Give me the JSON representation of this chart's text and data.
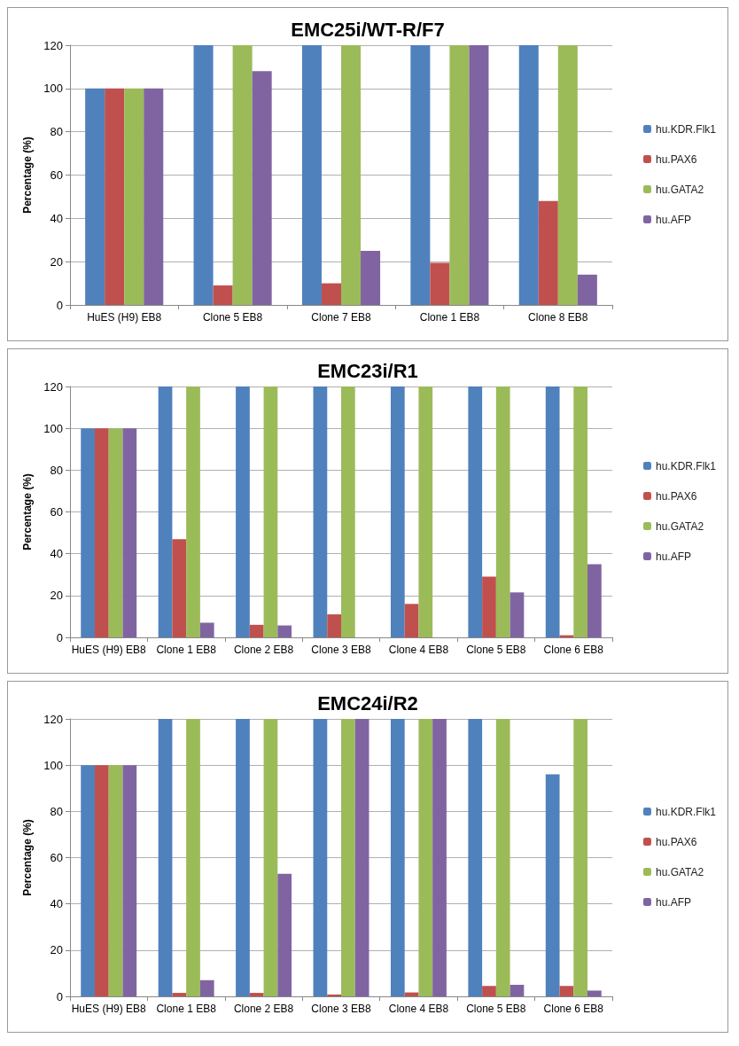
{
  "chart_data": [
    {
      "type": "bar",
      "title": "EMC25i/WT-R/F7",
      "ylabel": "Percentage (%)",
      "categories": [
        "HuES (H9) EB8",
        "Clone 5 EB8",
        "Clone 7 EB8",
        "Clone 1 EB8",
        "Clone 8 EB8"
      ],
      "ylim": [
        0,
        120
      ],
      "yticks": [
        0,
        20,
        40,
        60,
        80,
        100,
        120
      ],
      "grid": "y",
      "legend": "right",
      "series": [
        {
          "name": "hu.KDR.Flk1",
          "color": "#4f81bd",
          "values": [
            100,
            120,
            120,
            120,
            120
          ]
        },
        {
          "name": "hu.PAX6",
          "color": "#c0504d",
          "values": [
            100,
            9,
            10,
            19.5,
            48
          ]
        },
        {
          "name": "hu.GATA2",
          "color": "#9bbb59",
          "values": [
            100,
            120,
            120,
            120,
            120
          ]
        },
        {
          "name": "hu.AFP",
          "color": "#8064a2",
          "values": [
            100,
            108,
            25,
            120,
            14
          ]
        }
      ]
    },
    {
      "type": "bar",
      "title": "EMC23i/R1",
      "ylabel": "Percentage (%)",
      "categories": [
        "HuES (H9) EB8",
        "Clone 1 EB8",
        "Clone 2 EB8",
        "Clone 3 EB8",
        "Clone 4 EB8",
        "Clone 5 EB8",
        "Clone 6 EB8"
      ],
      "ylim": [
        0,
        120
      ],
      "yticks": [
        0,
        20,
        40,
        60,
        80,
        100,
        120
      ],
      "grid": "y",
      "legend": "right",
      "series": [
        {
          "name": "hu.KDR.Flk1",
          "color": "#4f81bd",
          "values": [
            100,
            120,
            120,
            120,
            120,
            120,
            120
          ]
        },
        {
          "name": "hu.PAX6",
          "color": "#c0504d",
          "values": [
            100,
            47,
            6,
            11,
            16,
            29,
            1
          ]
        },
        {
          "name": "hu.GATA2",
          "color": "#9bbb59",
          "values": [
            100,
            120,
            120,
            120,
            120,
            120,
            120
          ]
        },
        {
          "name": "hu.AFP",
          "color": "#8064a2",
          "values": [
            100,
            7,
            5.7,
            0,
            0,
            21.5,
            35
          ]
        }
      ]
    },
    {
      "type": "bar",
      "title": "EMC24i/R2",
      "ylabel": "Percentage (%)",
      "categories": [
        "HuES (H9) EB8",
        "Clone 1 EB8",
        "Clone 2 EB8",
        "Clone 3 EB8",
        "Clone 4 EB8",
        "Clone 5 EB8",
        "Clone 6 EB8"
      ],
      "ylim": [
        0,
        120
      ],
      "yticks": [
        0,
        20,
        40,
        60,
        80,
        100,
        120
      ],
      "grid": "y",
      "legend": "right",
      "series": [
        {
          "name": "hu.KDR.Flk1",
          "color": "#4f81bd",
          "values": [
            100,
            120,
            120,
            120,
            120,
            120,
            96
          ]
        },
        {
          "name": "hu.PAX6",
          "color": "#c0504d",
          "values": [
            100,
            1.5,
            1.5,
            0.8,
            1.7,
            4.5,
            4.5
          ]
        },
        {
          "name": "hu.GATA2",
          "color": "#9bbb59",
          "values": [
            100,
            120,
            120,
            120,
            120,
            120,
            120
          ]
        },
        {
          "name": "hu.AFP",
          "color": "#8064a2",
          "values": [
            100,
            7,
            53,
            120,
            120,
            5,
            2.5
          ]
        }
      ]
    }
  ]
}
